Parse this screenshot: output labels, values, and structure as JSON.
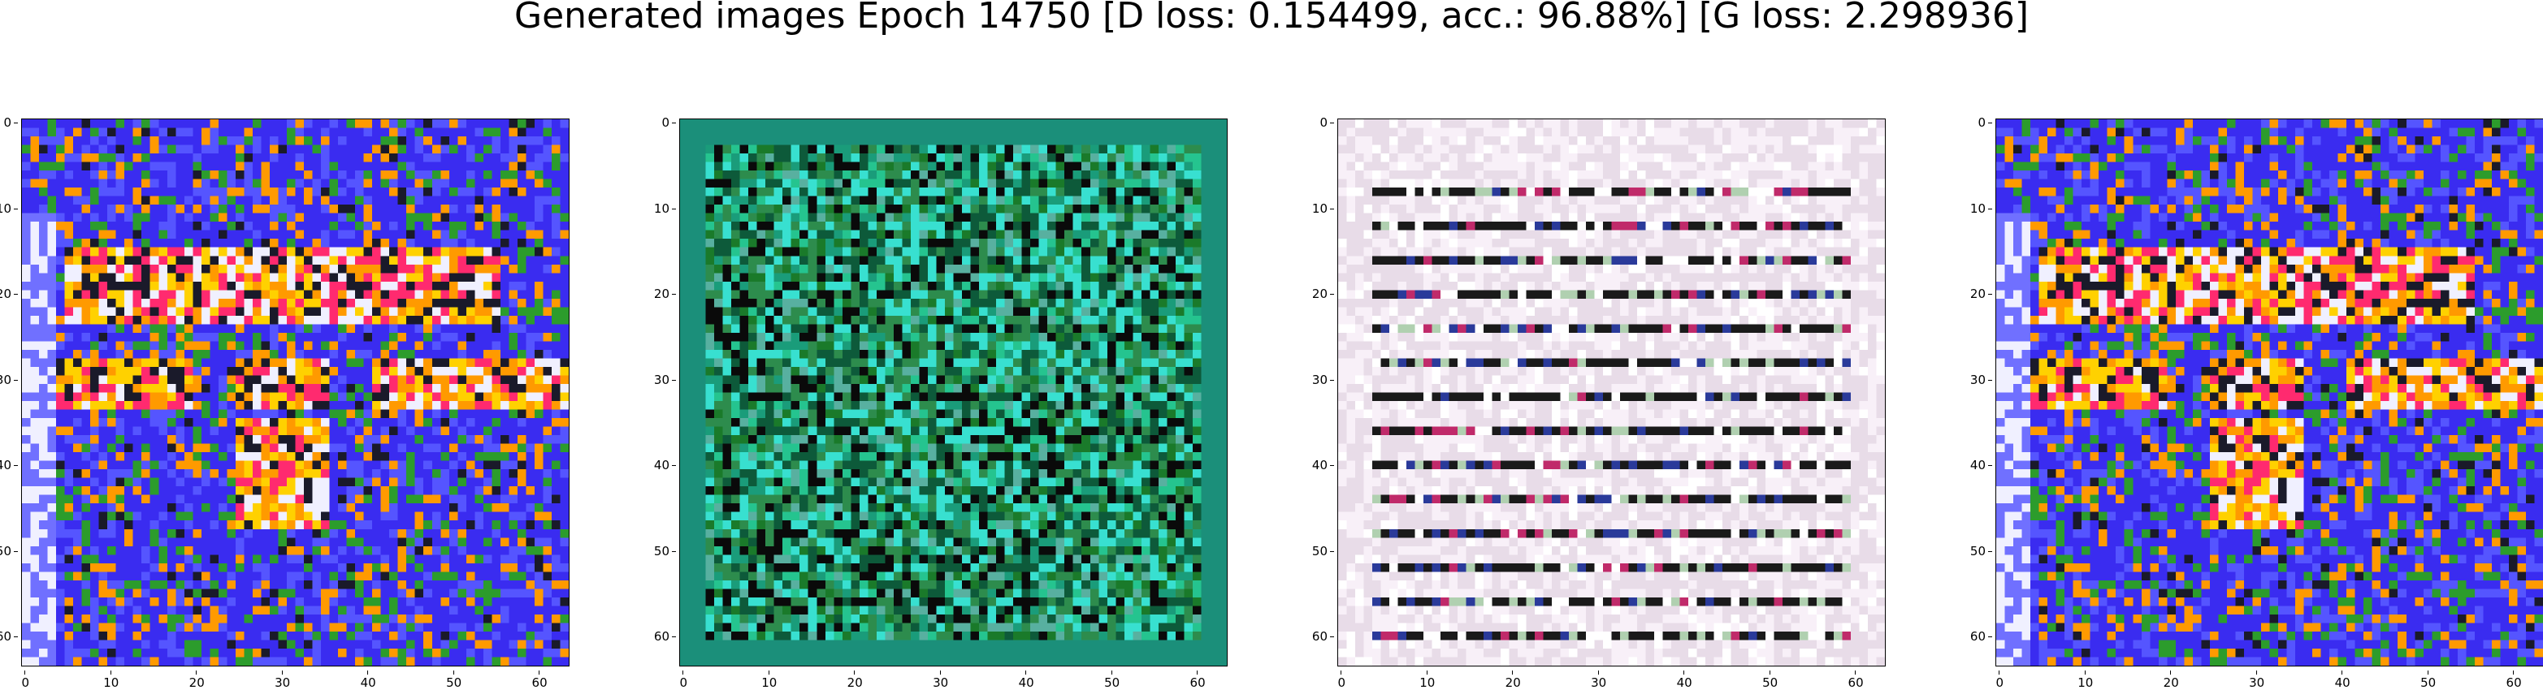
{
  "figure": {
    "title": "Generated images Epoch 14750 [D loss: 0.154499, acc.: 96.88%] [G loss: 2.298936]"
  },
  "axes": {
    "y_ticks": [
      "0",
      "10",
      "20",
      "30",
      "40",
      "50",
      "60"
    ],
    "x_ticks": [
      "0",
      "10",
      "20",
      "30",
      "40",
      "50",
      "60"
    ],
    "image_size": 64
  },
  "panels": [
    {
      "name": "generated-image-1",
      "palette": [
        "#3a2cf0",
        "#5555ff",
        "#ffd100",
        "#ff2a6f",
        "#f0f0ff",
        "#1a1a2a",
        "#ff9a00",
        "#2c9c2c"
      ],
      "base": "#4040f0"
    },
    {
      "name": "generated-image-2",
      "palette": [
        "#1a9c7a",
        "#0d5a3a",
        "#25c48f",
        "#0a0a0a",
        "#1a7a2a",
        "#38e0d0",
        "#58b0a0",
        "#2d8c4d"
      ],
      "base": "#1b8f7a"
    },
    {
      "name": "generated-image-3",
      "palette": [
        "#e8dce8",
        "#f8f0f8",
        "#1a1a1a",
        "#d8c0d8",
        "#b0d0b0",
        "#2a3a9a",
        "#c02a6a",
        "#ffffff"
      ],
      "base": "#ece0ec"
    },
    {
      "name": "generated-image-4",
      "palette": [
        "#3a2cf0",
        "#5555ff",
        "#ffd100",
        "#ff2a6f",
        "#f0f0ff",
        "#1a1a2a",
        "#ff9a00",
        "#2c9c2c"
      ],
      "base": "#4040f0"
    }
  ]
}
